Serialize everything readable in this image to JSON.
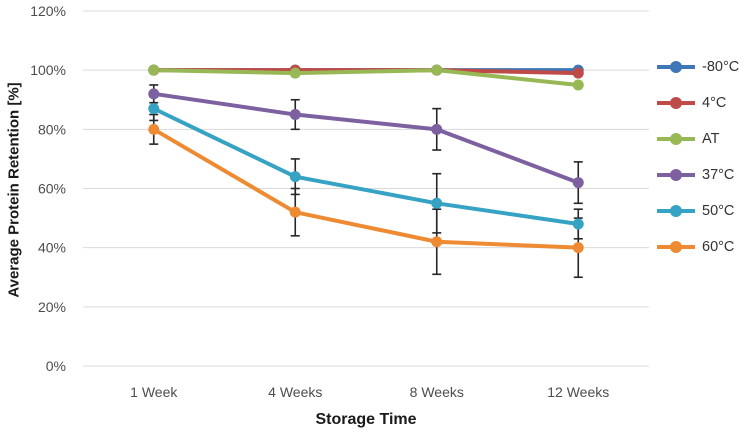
{
  "chart_data": {
    "type": "line",
    "title": "",
    "xlabel": "Storage Time",
    "ylabel": "Average Protein Retention [%]",
    "categories": [
      "1 Week",
      "4 Weeks",
      "8 Weeks",
      "12 Weeks"
    ],
    "ylim": [
      0,
      120
    ],
    "yticks": [
      0,
      20,
      40,
      60,
      80,
      100,
      120
    ],
    "ytick_labels": [
      "0%",
      "20%",
      "40%",
      "60%",
      "80%",
      "100%",
      "120%"
    ],
    "grid": true,
    "legend_position": "right",
    "series": [
      {
        "name": "-80°C",
        "color": "#3F76B5",
        "values": [
          100,
          100,
          100,
          100
        ],
        "errors": [
          0,
          0,
          0,
          0
        ]
      },
      {
        "name": "4°C",
        "color": "#BE4B48",
        "values": [
          100,
          100,
          100,
          99
        ],
        "errors": [
          0,
          0,
          0,
          0
        ]
      },
      {
        "name": "AT",
        "color": "#97B854",
        "values": [
          100,
          99,
          100,
          95
        ],
        "errors": [
          0,
          0,
          0,
          0
        ]
      },
      {
        "name": "37°C",
        "color": "#7D60A0",
        "values": [
          92,
          85,
          80,
          62
        ],
        "errors": [
          3,
          5,
          7,
          7
        ]
      },
      {
        "name": "50°C",
        "color": "#36A2C4",
        "values": [
          87,
          64,
          55,
          48
        ],
        "errors": [
          4,
          6,
          10,
          5
        ]
      },
      {
        "name": "60°C",
        "color": "#EE8A31",
        "values": [
          80,
          52,
          42,
          40
        ],
        "errors": [
          5,
          8,
          11,
          10
        ]
      }
    ],
    "error_bar_color": "#262626",
    "gridline_color": "#D9D9D9",
    "tick_label_color": "#4D4D4D"
  }
}
